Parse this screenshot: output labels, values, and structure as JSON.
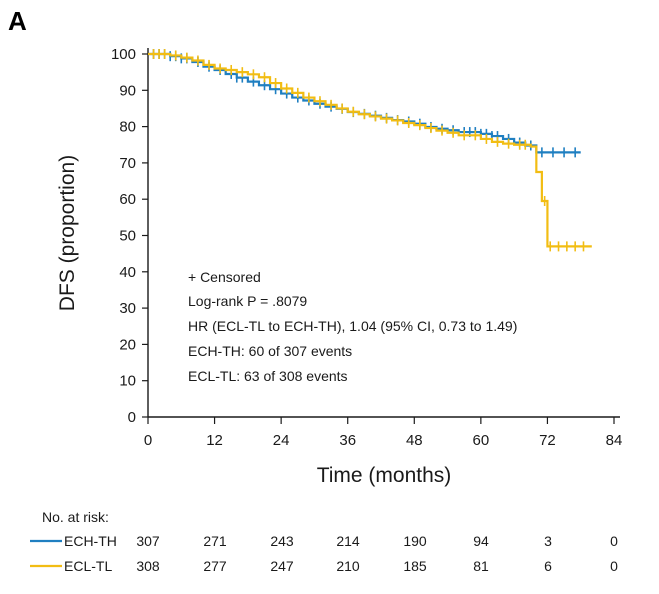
{
  "panel_label": "A",
  "chart_data": {
    "type": "line",
    "step": true,
    "xlabel": "Time (months)",
    "ylabel": "DFS (proportion)",
    "xlim": [
      0,
      84
    ],
    "ylim": [
      0,
      100
    ],
    "x_ticks": [
      0,
      12,
      24,
      36,
      48,
      60,
      72,
      84
    ],
    "y_ticks": [
      0,
      10,
      20,
      30,
      40,
      50,
      60,
      70,
      80,
      90,
      100
    ],
    "colors": {
      "ECH-TH": "#1f7fc1",
      "ECL-TL": "#f2bd13"
    },
    "annotations": [
      "+ Censored",
      "Log-rank P = .8079",
      "HR (ECL-TL to ECH-TH), 1.04 (95% CI, 0.73 to 1.49)",
      "ECH-TH: 60 of 307 events",
      "ECL-TL: 63 of 308 events"
    ],
    "series": [
      {
        "name": "ECH-TH",
        "points": [
          [
            0,
            100
          ],
          [
            4,
            99.4
          ],
          [
            6,
            98.8
          ],
          [
            8,
            97.8
          ],
          [
            10,
            96.5
          ],
          [
            12,
            95.6
          ],
          [
            14,
            94.5
          ],
          [
            16,
            93.5
          ],
          [
            18,
            92.4
          ],
          [
            20,
            91.4
          ],
          [
            22,
            90.3
          ],
          [
            24,
            89.1
          ],
          [
            26,
            88.0
          ],
          [
            28,
            87.2
          ],
          [
            30,
            86.3
          ],
          [
            32,
            85.5
          ],
          [
            34,
            84.9
          ],
          [
            36,
            84.0
          ],
          [
            38,
            83.5
          ],
          [
            40,
            83.0
          ],
          [
            42,
            82.4
          ],
          [
            44,
            81.8
          ],
          [
            46,
            81.4
          ],
          [
            48,
            80.8
          ],
          [
            50,
            79.9
          ],
          [
            52,
            79.4
          ],
          [
            54,
            79.0
          ],
          [
            56,
            78.5
          ],
          [
            60,
            78.0
          ],
          [
            62,
            77.4
          ],
          [
            64,
            76.6
          ],
          [
            66,
            75.6
          ],
          [
            68,
            74.8
          ],
          [
            70,
            72.9
          ],
          [
            78,
            72.9
          ]
        ],
        "censor_x": [
          1,
          2,
          3,
          4,
          5,
          6,
          7,
          9,
          11,
          13,
          15,
          16,
          17,
          19,
          21,
          23,
          25,
          27,
          29,
          31,
          33,
          35,
          37,
          39,
          41,
          43,
          45,
          47,
          49,
          51,
          53,
          55,
          57,
          58,
          59,
          60,
          61,
          62,
          63,
          65,
          67,
          69,
          71,
          73,
          75,
          77
        ]
      },
      {
        "name": "ECL-TL",
        "points": [
          [
            0,
            100
          ],
          [
            4,
            99.6
          ],
          [
            6,
            99.0
          ],
          [
            8,
            98.2
          ],
          [
            10,
            97.0
          ],
          [
            12,
            96.0
          ],
          [
            14,
            95.6
          ],
          [
            16,
            95.0
          ],
          [
            18,
            94.4
          ],
          [
            20,
            93.6
          ],
          [
            22,
            92.0
          ],
          [
            24,
            90.5
          ],
          [
            26,
            89.3
          ],
          [
            28,
            88.0
          ],
          [
            30,
            87.0
          ],
          [
            32,
            86.0
          ],
          [
            34,
            85.0
          ],
          [
            36,
            84.1
          ],
          [
            38,
            83.4
          ],
          [
            40,
            82.8
          ],
          [
            42,
            82.2
          ],
          [
            44,
            81.7
          ],
          [
            46,
            81.0
          ],
          [
            48,
            80.4
          ],
          [
            50,
            79.6
          ],
          [
            52,
            78.9
          ],
          [
            54,
            78.3
          ],
          [
            56,
            77.6
          ],
          [
            60,
            76.6
          ],
          [
            62,
            75.8
          ],
          [
            64,
            75.3
          ],
          [
            66,
            75.0
          ],
          [
            69,
            74.5
          ],
          [
            70,
            67.5
          ],
          [
            71,
            59.5
          ],
          [
            72,
            47.0
          ],
          [
            80,
            47.0
          ]
        ],
        "censor_x": [
          1,
          2,
          3,
          5,
          7,
          9,
          11,
          13,
          15,
          17,
          19,
          21,
          23,
          25,
          27,
          29,
          31,
          33,
          35,
          37,
          39,
          41,
          43,
          45,
          47,
          49,
          51,
          53,
          55,
          57,
          59,
          61,
          63,
          65,
          67,
          68,
          71.5,
          72.5,
          74,
          75.5,
          77,
          78.5
        ]
      }
    ]
  },
  "risk_table": {
    "title": "No. at risk:",
    "rows": [
      {
        "name": "ECH-TH",
        "counts": [
          "307",
          "271",
          "243",
          "214",
          "190",
          "94",
          "3",
          "0"
        ]
      },
      {
        "name": "ECL-TL",
        "counts": [
          "308",
          "277",
          "247",
          "210",
          "185",
          "81",
          "6",
          "0"
        ]
      }
    ]
  }
}
